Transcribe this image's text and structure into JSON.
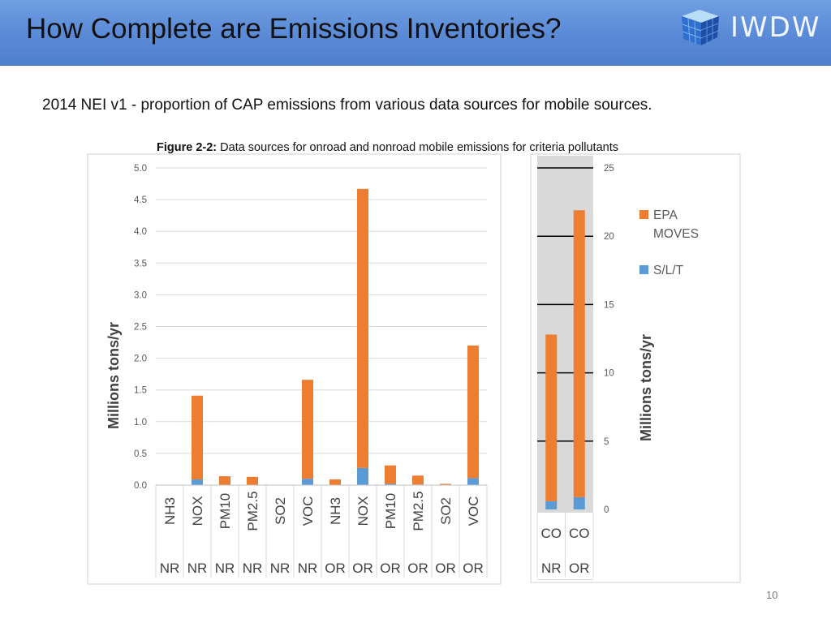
{
  "slide": {
    "title": "How Complete are Emissions Inventories?",
    "subtitle": "2014 NEI v1 - proportion of CAP emissions from various data sources for mobile sources.",
    "page_number": "10",
    "logo_text": "IWDW"
  },
  "figure": {
    "caption_label": "Figure 2-2:",
    "caption_text": " Data sources for onroad and nonroad mobile emissions for criteria pollutants"
  },
  "colors": {
    "header": "#5a8ad6",
    "epa_moves": "#ed7d31",
    "slt": "#5b9bd5",
    "right_panel_bg": "#d9d9d9"
  },
  "chart_data": [
    {
      "type": "bar",
      "stacked": true,
      "ylabel": "Millions tons/yr",
      "ylim": [
        0,
        5
      ],
      "yticks": [
        "0.0",
        "0.5",
        "1.0",
        "1.5",
        "2.0",
        "2.5",
        "3.0",
        "3.5",
        "4.0",
        "4.5",
        "5.0"
      ],
      "grid": true,
      "categories": [
        "NH3",
        "NOX",
        "PM10",
        "PM2.5",
        "SO2",
        "VOC",
        "NH3",
        "NOX",
        "PM10",
        "PM2.5",
        "SO2",
        "VOC"
      ],
      "groups": [
        "NR",
        "NR",
        "NR",
        "NR",
        "NR",
        "NR",
        "OR",
        "OR",
        "OR",
        "OR",
        "OR",
        "OR"
      ],
      "series": [
        {
          "name": "S/L/T",
          "values": [
            0.0,
            0.09,
            0.0,
            0.0,
            0.0,
            0.1,
            0.0,
            0.27,
            0.02,
            0.01,
            0.0,
            0.11
          ]
        },
        {
          "name": "EPA MOVES",
          "values": [
            0.0,
            1.32,
            0.14,
            0.13,
            0.0,
            1.56,
            0.09,
            4.4,
            0.29,
            0.14,
            0.02,
            2.09
          ]
        }
      ]
    },
    {
      "type": "bar",
      "stacked": true,
      "ylabel": "Millions tons/yr",
      "ylim": [
        0,
        25
      ],
      "yticks": [
        "0",
        "5",
        "10",
        "15",
        "20",
        "25"
      ],
      "grid": true,
      "legend_position": "right",
      "categories": [
        "CO",
        "CO"
      ],
      "groups": [
        "NR",
        "OR"
      ],
      "series": [
        {
          "name": "S/L/T",
          "values": [
            0.6,
            0.9
          ]
        },
        {
          "name": "EPA MOVES",
          "values": [
            12.2,
            21.0
          ]
        }
      ],
      "legend": [
        "EPA MOVES",
        "S/L/T"
      ]
    }
  ]
}
